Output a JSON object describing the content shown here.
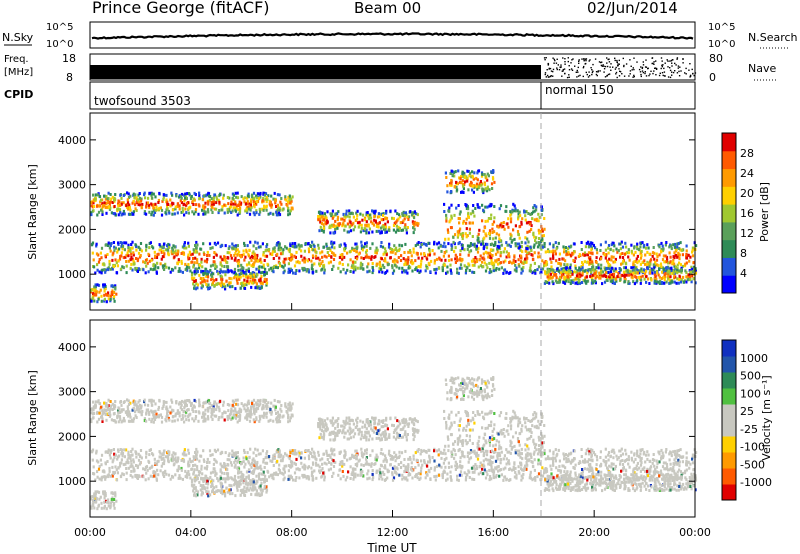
{
  "header": {
    "site": "Prince George (fitACF)",
    "beam": "Beam 00",
    "date": "02/Jun/2014"
  },
  "strips": {
    "nsky_label": "N.Sky",
    "nsky_top": "10^5",
    "nsky_bottom": "10^0",
    "nsearch_label": "N.Search",
    "nsearch_top": "10^5",
    "nsearch_bottom": "10^0",
    "freq_label_1": "Freq.",
    "freq_label_2": "[MHz]",
    "freq_top": "18",
    "freq_bottom": "8",
    "nave_top": "80",
    "nave_bottom": "0",
    "nave_label": "Nave",
    "cpid_label": "CPID",
    "cpid_1": "twofsound 3503",
    "cpid_2": "normal 150"
  },
  "colors": {
    "power": [
      "#0000ff",
      "#2255dd",
      "#2e8b57",
      "#5aa05a",
      "#a0c830",
      "#ffd000",
      "#ff9a00",
      "#ff5a00",
      "#e00000"
    ],
    "velocity": [
      "#e00000",
      "#ff5a00",
      "#ff9a00",
      "#ffd000",
      "#c8c8c0",
      "#c8c8c0",
      "#50c040",
      "#2e8b57",
      "#2255aa",
      "#1030c0"
    ]
  },
  "chart_data": [
    {
      "type": "heatmap",
      "name": "power",
      "ylabel": "Slant Range [km]",
      "xlabel": "Time UT",
      "xticks": [
        "00:00",
        "04:00",
        "08:00",
        "12:00",
        "16:00",
        "20:00",
        "00:00"
      ],
      "xlim_hours": [
        0,
        24
      ],
      "yticks": [
        1000,
        2000,
        3000,
        4000
      ],
      "ylim": [
        200,
        4600
      ],
      "colorbar_label": "Power [dB]",
      "colorbar_ticks": [
        "4",
        "8",
        "12",
        "16",
        "20",
        "24",
        "28"
      ],
      "cpid_change_hour": 18
    },
    {
      "type": "heatmap",
      "name": "velocity",
      "ylabel": "Slant Range [km]",
      "xlabel": "Time UT",
      "xticks": [
        "00:00",
        "04:00",
        "08:00",
        "12:00",
        "16:00",
        "20:00",
        "00:00"
      ],
      "xlim_hours": [
        0,
        24
      ],
      "yticks": [
        1000,
        2000,
        3000,
        4000
      ],
      "ylim": [
        200,
        4600
      ],
      "colorbar_label": "Velocity [m s⁻¹]",
      "colorbar_ticks": [
        "1000",
        "500",
        "100",
        "25",
        "-25",
        "-100",
        "-500",
        "-1000"
      ],
      "cpid_change_hour": 18
    }
  ]
}
